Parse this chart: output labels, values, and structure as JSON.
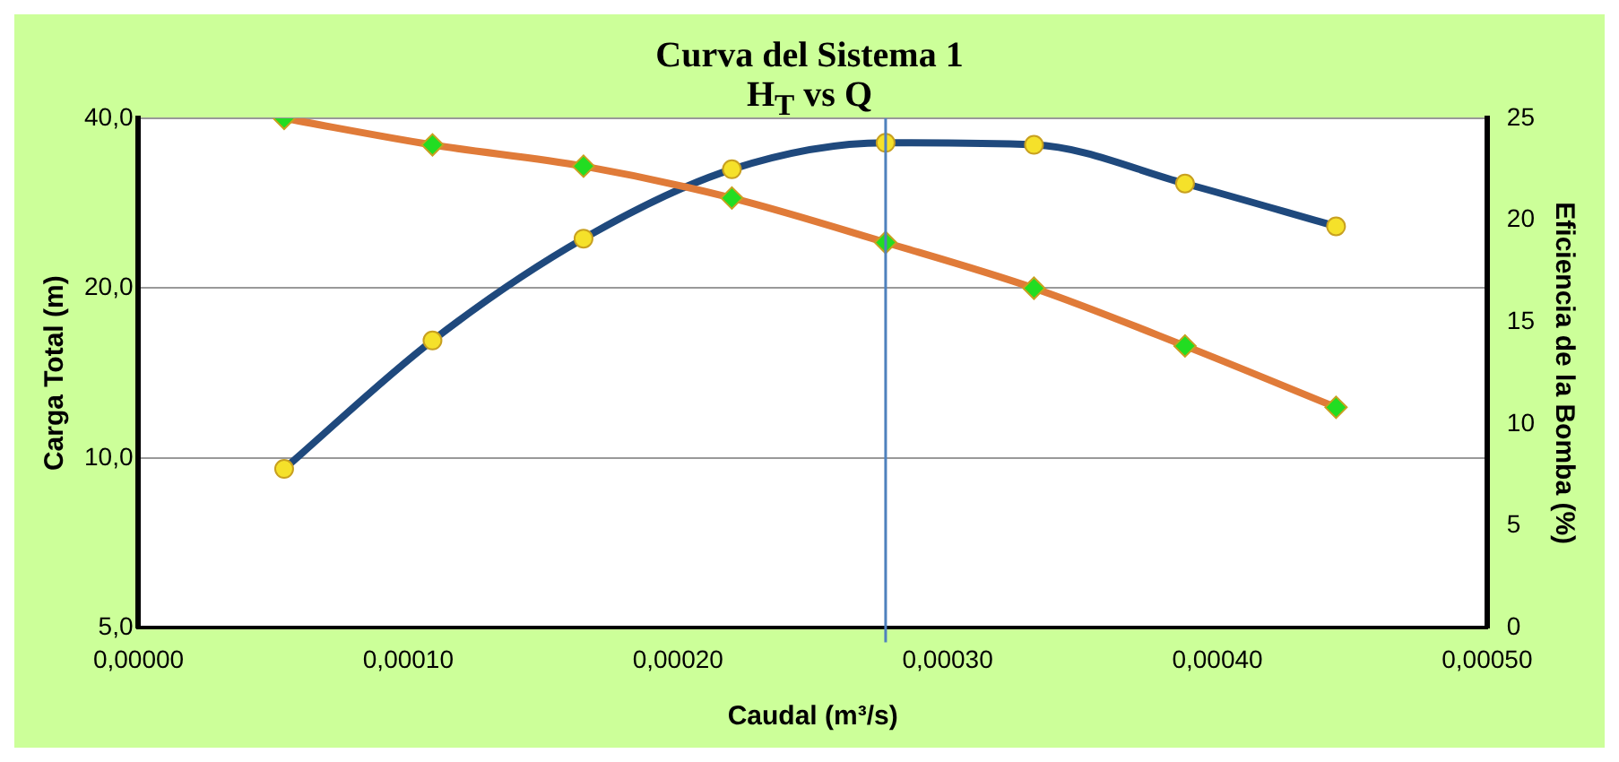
{
  "chart_data": {
    "type": "line",
    "title": "Curva del Sistema 1",
    "subtitle": "H$_{T}$ vs Q",
    "xlabel": "Caudal (m³/s)",
    "ylabel": "Carga Total (m)",
    "y2label": "Eficiencia de la Bomba (%)",
    "x": [
      5.4e-05,
      0.000109,
      0.000165,
      0.00022,
      0.000277,
      0.000332,
      0.000388,
      0.000444
    ],
    "series": [
      {
        "color": "#e07b39",
        "marker": "diamond",
        "values": [
          40,
          35.9,
          32.9,
          28.9,
          24.1,
          20,
          15.8,
          12.3
        ]
      },
      {
        "color": "#1f497d",
        "marker": "circle",
        "axis": "y2",
        "values": [
          7.8,
          14.1,
          19.1,
          22.5,
          23.8,
          23.7,
          21.8,
          19.7
        ]
      }
    ],
    "xlim": [
      0,
      0.0005
    ],
    "xticks": [
      {
        "value": 0,
        "label": "0,00000"
      },
      {
        "value": 0.0001,
        "label": "0,00010"
      },
      {
        "value": 0.0002,
        "label": "0,00020"
      },
      {
        "value": 0.0003,
        "label": "0,00030"
      },
      {
        "value": 0.0004,
        "label": "0,00040"
      },
      {
        "value": 0.0005,
        "label": "0,00050"
      }
    ],
    "ylim": [
      5,
      40
    ],
    "yticks": [
      {
        "value": 5,
        "label": "5,0"
      },
      {
        "value": 10,
        "label": "10,0"
      },
      {
        "value": 20,
        "label": "20,0"
      },
      {
        "value": 40,
        "label": "40,0"
      }
    ],
    "y2lim": [
      0,
      25
    ],
    "y2ticks": [
      0,
      5,
      10,
      15,
      20,
      25
    ],
    "log": "y",
    "grid": "y",
    "legend": false,
    "line_style": "solid",
    "ref_lines": [
      {
        "axis": "x",
        "value": 0.000277,
        "color": "#4f81bd"
      }
    ]
  }
}
